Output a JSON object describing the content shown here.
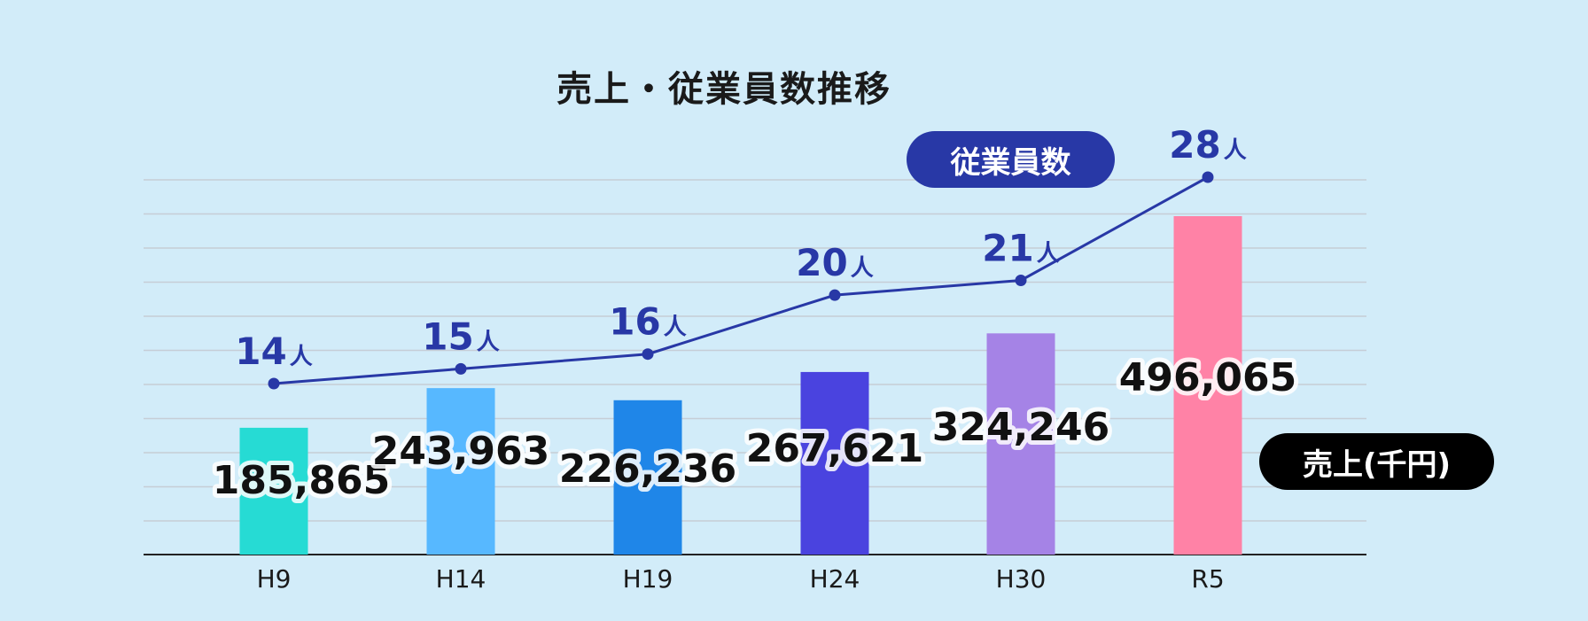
{
  "chart_data": {
    "type": "bar",
    "title": "売上・従業員数推移",
    "categories": [
      "H9",
      "H14",
      "H19",
      "H24",
      "H30",
      "R5"
    ],
    "series": [
      {
        "name": "売上(千円)",
        "type": "bar",
        "values": [
          185865,
          243963,
          226236,
          267621,
          324246,
          496065
        ],
        "value_labels": [
          "185,865",
          "243,963",
          "226,236",
          "267,621",
          "324,246",
          "496,065"
        ],
        "colors": [
          "#26dbd4",
          "#57b8ff",
          "#1f86e8",
          "#4a43df",
          "#a583e6",
          "#ff82a6"
        ]
      },
      {
        "name": "従業員数",
        "type": "line",
        "values": [
          14,
          15,
          16,
          20,
          21,
          28
        ],
        "value_labels": [
          "14",
          "15",
          "16",
          "20",
          "21",
          "28"
        ],
        "unit": "人",
        "color": "#2838a6"
      }
    ],
    "legend": [
      {
        "label": "従業員数",
        "color": "#2838a6",
        "placement": "top-right"
      },
      {
        "label": "売上(千円)",
        "color": "#000000",
        "placement": "right"
      }
    ],
    "grid": true,
    "colors": {
      "background": "#d2ecf9",
      "grid": "#c6cdd6",
      "axis": "#222222"
    }
  }
}
